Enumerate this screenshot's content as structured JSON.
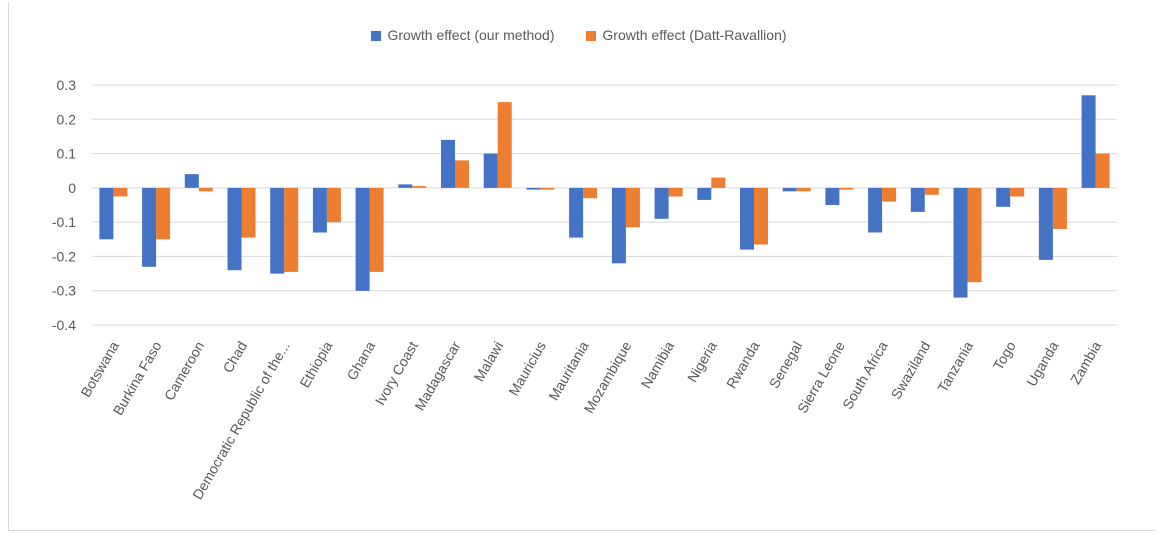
{
  "colors": {
    "our_method": "#4472c4",
    "datt_ravallion": "#ed7d31",
    "grid": "#d9d9d9",
    "text": "#595959"
  },
  "chart_data": {
    "type": "bar",
    "title": "",
    "xlabel": "",
    "ylabel": "",
    "ylim": [
      -0.4,
      0.3
    ],
    "yticks": [
      "0.3",
      "0.2",
      "0.1",
      "0",
      "-0.1",
      "-0.2",
      "-0.3",
      "-0.4"
    ],
    "ytick_values": [
      0.3,
      0.2,
      0.1,
      0,
      -0.1,
      -0.2,
      -0.3,
      -0.4
    ],
    "grid": true,
    "legend_position": "top",
    "categories": [
      "Botswana",
      "Burkina Faso",
      "Cameroon",
      "Chad",
      "Democratic Republic of the...",
      "Ethiopia",
      "Ghana",
      "Ivory Coast",
      "Madagascar",
      "Malawi",
      "Mauricius",
      "Mauritania",
      "Mozambique",
      "Namibia",
      "Nigeria",
      "Rwanda",
      "Senegal",
      "Sierra Leone",
      "South Africa",
      "Swaziland",
      "Tanzania",
      "Togo",
      "Uganda",
      "Zambia"
    ],
    "series": [
      {
        "name": "Growth effect (our method)",
        "values": [
          -0.15,
          -0.23,
          0.04,
          -0.24,
          -0.25,
          -0.13,
          -0.3,
          0.01,
          0.14,
          0.1,
          -0.005,
          -0.145,
          -0.22,
          -0.09,
          -0.035,
          -0.18,
          -0.01,
          -0.05,
          -0.13,
          -0.07,
          -0.32,
          -0.055,
          -0.21,
          0.27
        ]
      },
      {
        "name": "Growth effect (Datt-Ravallion)",
        "values": [
          -0.025,
          -0.15,
          -0.01,
          -0.145,
          -0.245,
          -0.1,
          -0.245,
          0.005,
          0.08,
          0.25,
          -0.005,
          -0.03,
          -0.115,
          -0.025,
          0.03,
          -0.165,
          -0.01,
          -0.005,
          -0.04,
          -0.02,
          -0.275,
          -0.025,
          -0.12,
          0.1
        ]
      }
    ]
  }
}
